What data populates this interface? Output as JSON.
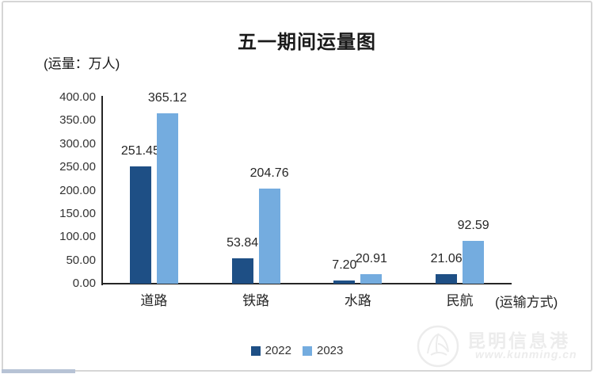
{
  "page": {
    "background": "#ffffff",
    "frame_border_color": "#d6d6d6",
    "scrollbar_thumb_color": "#b7c3d5"
  },
  "chart_data": {
    "type": "bar",
    "title": "五一期间运量图",
    "unit_label": "(运量：万人)",
    "xaxis_label": "(运输方式)",
    "categories": [
      "道路",
      "铁路",
      "水路",
      "民航"
    ],
    "series": [
      {
        "name": "2022",
        "color": "#1E4F85",
        "values": [
          251.45,
          53.84,
          7.2,
          21.06
        ]
      },
      {
        "name": "2023",
        "color": "#74ACDF",
        "values": [
          365.12,
          204.76,
          20.91,
          92.59
        ]
      }
    ],
    "value_labels": [
      [
        "251.45",
        "53.84",
        "7.20",
        "21.06"
      ],
      [
        "365.12",
        "204.76",
        "20.91",
        "92.59"
      ]
    ],
    "y_axis": {
      "min": 0,
      "max": 400,
      "step": 50,
      "tick_labels": [
        "0.00",
        "50.00",
        "100.00",
        "150.00",
        "200.00",
        "250.00",
        "300.00",
        "350.00",
        "400.00"
      ]
    },
    "grid": false,
    "legend_position": "bottom-center",
    "axis_color": "#262626"
  },
  "watermark": {
    "site_name": "昆明信息港",
    "site_url": "www.kunming.cn"
  }
}
